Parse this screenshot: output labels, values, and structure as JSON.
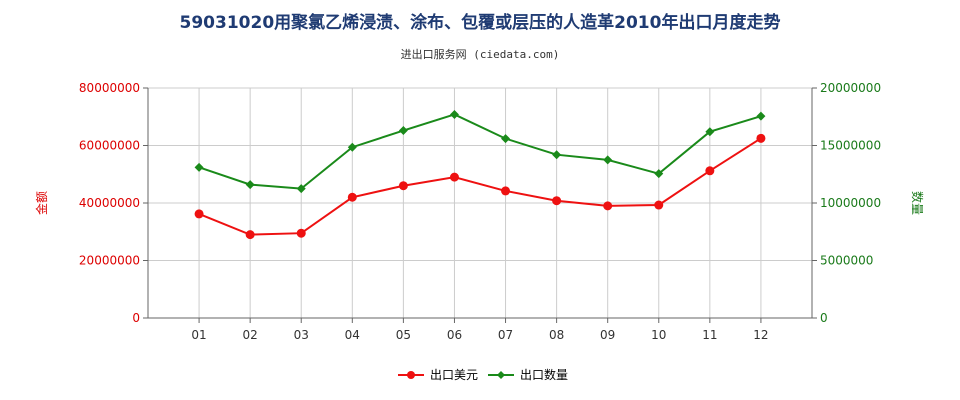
{
  "chart_data": {
    "type": "line",
    "title": "59031020用聚氯乙烯浸渍、涂布、包覆或层压的人造革2010年出口月度走势",
    "subtitle": "进出口服务网 (ciedata.com)",
    "categories": [
      "01",
      "02",
      "03",
      "04",
      "05",
      "06",
      "07",
      "08",
      "09",
      "10",
      "11",
      "12"
    ],
    "left_axis": {
      "label": "金额",
      "color": "#dd0000",
      "ylim": [
        0,
        80000000
      ],
      "ticks": [
        "0",
        "20000000",
        "40000000",
        "60000000",
        "80000000"
      ]
    },
    "right_axis": {
      "label": "数量",
      "color": "#1a7a1a",
      "ylim": [
        0,
        20000000
      ],
      "ticks": [
        "0",
        "5000000",
        "10000000",
        "15000000",
        "20000000"
      ]
    },
    "series": [
      {
        "name": "出口美元",
        "axis": "left",
        "color": "#ee1111",
        "values": [
          36200000,
          29000000,
          29500000,
          42000000,
          46000000,
          49000000,
          44200000,
          40800000,
          39000000,
          39300000,
          51200000,
          62500000
        ]
      },
      {
        "name": "出口数量",
        "axis": "right",
        "color": "#1a8a1a",
        "values": [
          13100000,
          11600000,
          11250000,
          14850000,
          16300000,
          17700000,
          15600000,
          14200000,
          13750000,
          12550000,
          16200000,
          17550000
        ]
      }
    ],
    "grid": true,
    "legend_position": "bottom-center"
  }
}
